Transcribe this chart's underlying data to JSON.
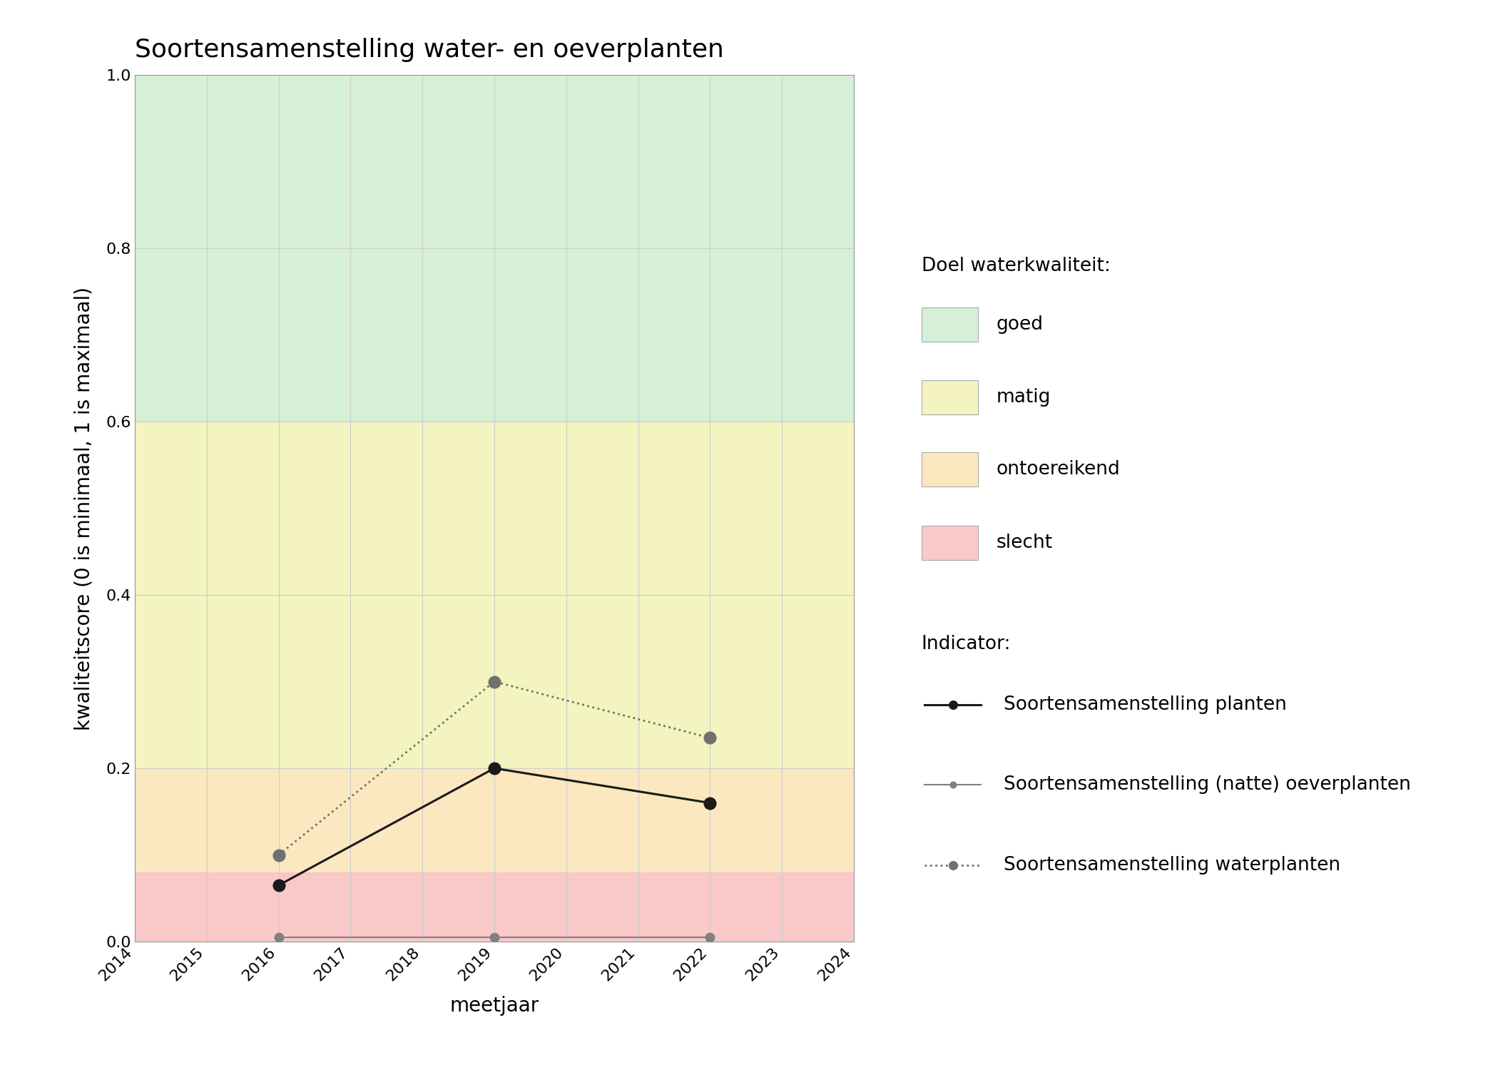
{
  "title": "Soortensamenstelling water- en oeverplanten",
  "xlabel": "meetjaar",
  "ylabel": "kwaliteitscore (0 is minimaal, 1 is maximaal)",
  "xlim": [
    2014,
    2024
  ],
  "ylim": [
    0.0,
    1.0
  ],
  "xticks": [
    2014,
    2015,
    2016,
    2017,
    2018,
    2019,
    2020,
    2021,
    2022,
    2023,
    2024
  ],
  "yticks": [
    0.0,
    0.2,
    0.4,
    0.6,
    0.8,
    1.0
  ],
  "bg_color": "#ffffff",
  "plot_bg": "#ffffff",
  "quality_bands": [
    {
      "name": "goed",
      "ymin": 0.6,
      "ymax": 1.0,
      "color": "#d6f0d6"
    },
    {
      "name": "matig",
      "ymin": 0.2,
      "ymax": 0.6,
      "color": "#f4f4c0"
    },
    {
      "name": "ontoereikend",
      "ymin": 0.08,
      "ymax": 0.2,
      "color": "#fce8c0"
    },
    {
      "name": "slecht",
      "ymin": 0.0,
      "ymax": 0.08,
      "color": "#f9c8c8"
    }
  ],
  "series": {
    "planten": {
      "x": [
        2016,
        2019,
        2022
      ],
      "y": [
        0.065,
        0.2,
        0.16
      ],
      "color": "#1a1a1a",
      "linestyle": "-",
      "marker": "o",
      "markersize": 12,
      "linewidth": 2.2,
      "label": "Soortensamenstelling planten"
    },
    "oeverplanten": {
      "x": [
        2016,
        2019,
        2022
      ],
      "y": [
        0.005,
        0.005,
        0.005
      ],
      "color": "#808080",
      "linestyle": "-",
      "marker": "o",
      "markersize": 9,
      "linewidth": 1.5,
      "label": "Soortensamenstelling (natte) oeverplanten"
    },
    "waterplanten": {
      "x": [
        2016,
        2019,
        2022
      ],
      "y": [
        0.1,
        0.3,
        0.235
      ],
      "color": "#707070",
      "linestyle": ":",
      "marker": "o",
      "markersize": 12,
      "linewidth": 2.0,
      "label": "Soortensamenstelling waterplanten"
    }
  },
  "legend_quality_title": "Doel waterkwaliteit:",
  "legend_indicator_title": "Indicator:",
  "legend_quality_items": [
    {
      "label": "goed",
      "color": "#d6f0d6"
    },
    {
      "label": "matig",
      "color": "#f4f4c0"
    },
    {
      "label": "ontoereikend",
      "color": "#fce8c0"
    },
    {
      "label": "slecht",
      "color": "#f9c8c8"
    }
  ]
}
